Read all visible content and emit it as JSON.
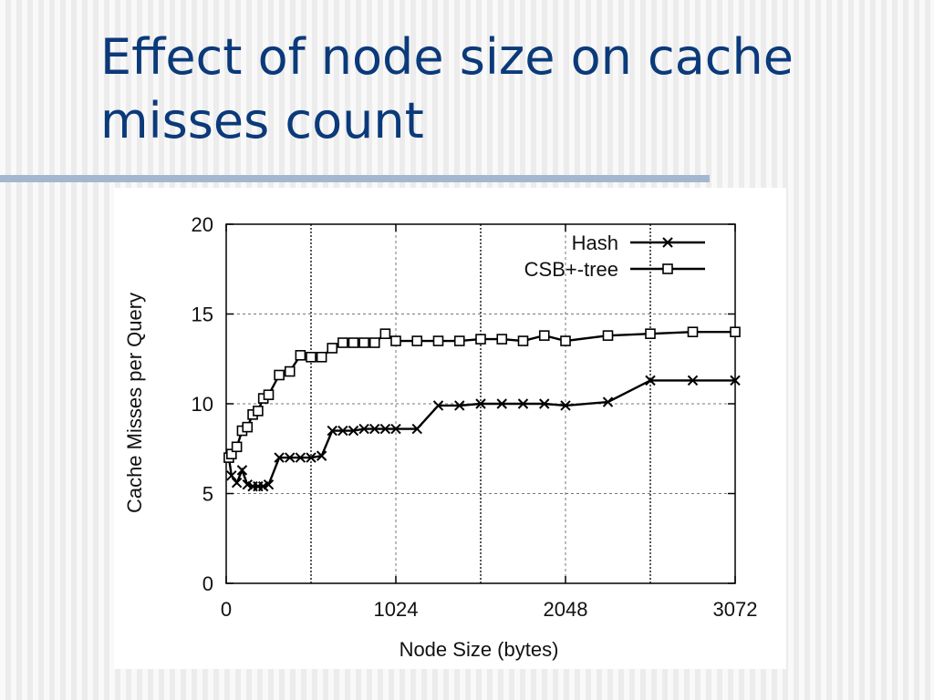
{
  "slide": {
    "title_line1": "Effect of node size on cache",
    "title_line2": "misses count"
  },
  "colors": {
    "title": "#0b3a7a",
    "rule": "#a3b7cf",
    "series": "#000000"
  },
  "chart_data": {
    "type": "line",
    "title": "",
    "xlabel": "Node Size (bytes)",
    "ylabel": "Cache Misses per Query",
    "xlim": [
      0,
      3072
    ],
    "ylim": [
      0,
      20
    ],
    "xticks": [
      0,
      1024,
      2048,
      3072
    ],
    "yticks": [
      0,
      5,
      10,
      15,
      20
    ],
    "grid": true,
    "vertical_marker_lines": [
      512,
      1536,
      2560
    ],
    "legend": "top-right",
    "series": [
      {
        "name": "Hash",
        "marker": "x",
        "x": [
          16,
          32,
          64,
          96,
          128,
          160,
          192,
          224,
          256,
          320,
          384,
          448,
          512,
          576,
          640,
          704,
          768,
          832,
          896,
          960,
          1024,
          1152,
          1280,
          1408,
          1536,
          1664,
          1792,
          1920,
          2048,
          2304,
          2560,
          2816,
          3072
        ],
        "y": [
          7.0,
          6.0,
          5.6,
          6.3,
          5.5,
          5.4,
          5.4,
          5.4,
          5.5,
          7.0,
          7.0,
          7.0,
          7.0,
          7.1,
          8.5,
          8.5,
          8.5,
          8.6,
          8.6,
          8.6,
          8.6,
          8.6,
          9.9,
          9.9,
          10.0,
          10.0,
          10.0,
          10.0,
          9.9,
          10.1,
          11.3,
          11.3,
          11.3
        ]
      },
      {
        "name": "CSB+-tree",
        "marker": "square",
        "x": [
          16,
          32,
          64,
          96,
          128,
          160,
          192,
          224,
          256,
          320,
          384,
          448,
          512,
          576,
          640,
          704,
          768,
          832,
          896,
          960,
          1024,
          1152,
          1280,
          1408,
          1536,
          1664,
          1792,
          1920,
          2048,
          2304,
          2560,
          2816,
          3072
        ],
        "y": [
          7.0,
          7.2,
          7.6,
          8.5,
          8.7,
          9.4,
          9.6,
          10.3,
          10.5,
          11.6,
          11.8,
          12.7,
          12.6,
          12.6,
          13.1,
          13.4,
          13.4,
          13.4,
          13.4,
          13.9,
          13.5,
          13.5,
          13.5,
          13.5,
          13.6,
          13.6,
          13.5,
          13.8,
          13.5,
          13.8,
          13.9,
          14.0,
          14.0
        ]
      }
    ]
  }
}
